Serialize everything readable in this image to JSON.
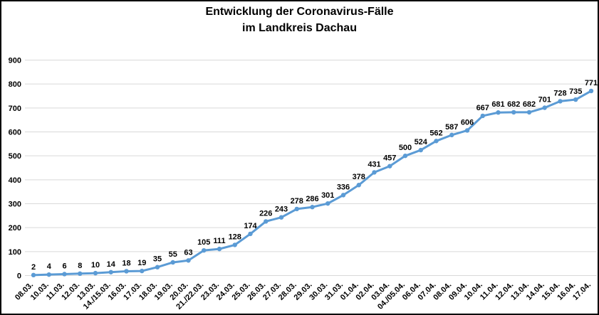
{
  "chart_data": {
    "type": "line",
    "title": "Entwicklung der Coronavirus-Fälle",
    "subtitle": "im Landkreis Dachau",
    "categories": [
      "08.03.",
      "10.03.",
      "11.03.",
      "12.03.",
      "13.03.",
      "14./15.03.",
      "16.03.",
      "17.03.",
      "18.03.",
      "19.03.",
      "20.03.",
      "21./22.03.",
      "23.03.",
      "24.03.",
      "25.03.",
      "26.03.",
      "27.03.",
      "28.03.",
      "29.03.",
      "30.03.",
      "31.03.",
      "01.04.",
      "02.04.",
      "03.04.",
      "04./05.04.",
      "06.04.",
      "07.04.",
      "08.04.",
      "09.04.",
      "10.04.",
      "11.04.",
      "12.04.",
      "13.04.",
      "14.04.",
      "15.04.",
      "16.04.",
      "17.04."
    ],
    "values": [
      2,
      4,
      6,
      8,
      10,
      14,
      18,
      19,
      35,
      55,
      63,
      105,
      111,
      128,
      174,
      226,
      243,
      278,
      286,
      301,
      336,
      378,
      431,
      457,
      500,
      524,
      562,
      587,
      606,
      667,
      681,
      682,
      682,
      701,
      728,
      735,
      771
    ],
    "xlabel": "",
    "ylabel": "",
    "ylim": [
      0,
      900
    ],
    "yticks": [
      0,
      100,
      200,
      300,
      400,
      500,
      600,
      700,
      800,
      900
    ],
    "grid": true,
    "legend": "none",
    "data_labels": true,
    "colors": {
      "line": "#5B9BD5",
      "marker": "#5B9BD5",
      "gridline": "#D9D9D9",
      "text": "#000000",
      "background": "#FFFFFF",
      "border": "#000000"
    }
  }
}
